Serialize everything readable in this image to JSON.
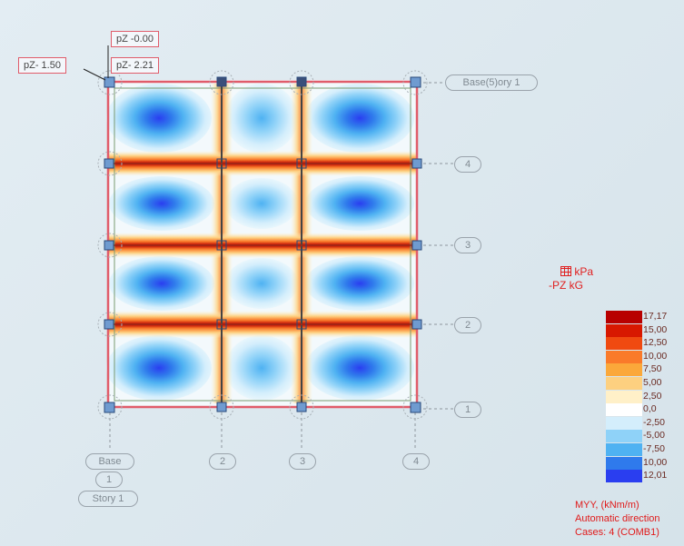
{
  "point_labels": {
    "top": "pZ -0.00",
    "left": "pZ- 1.50",
    "right": "pZ- 2.21"
  },
  "grid": {
    "row_labels": [
      "Base(5)ory 1",
      "4",
      "3",
      "2",
      "1"
    ],
    "column_labels": [
      "Base",
      "2",
      "3",
      "4"
    ],
    "base_number": "1",
    "story_label": "Story 1"
  },
  "legend": {
    "unit_line1": "kPa",
    "unit_line2": "-PZ kG",
    "unit_icon": "mesh-icon",
    "values": [
      "17,17",
      "15,00",
      "12,50",
      "10,00",
      "7,50",
      "5,00",
      "2,50",
      "0,0",
      "-2,50",
      "-5,00",
      "-7,50",
      "10,00",
      "12,01"
    ],
    "colors": [
      "#b80000",
      "#d81800",
      "#f04a10",
      "#fa7a2a",
      "#fba83a",
      "#fdd080",
      "#fff0c8",
      "#ffffff",
      "#d4eefc",
      "#8fd2f8",
      "#4fb2f2",
      "#2f7aec",
      "#2a3ef0"
    ],
    "description": "MYY, (kNm/m)",
    "direction": "Automatic direction",
    "cases": "Cases: 4 (COMB1)"
  }
}
